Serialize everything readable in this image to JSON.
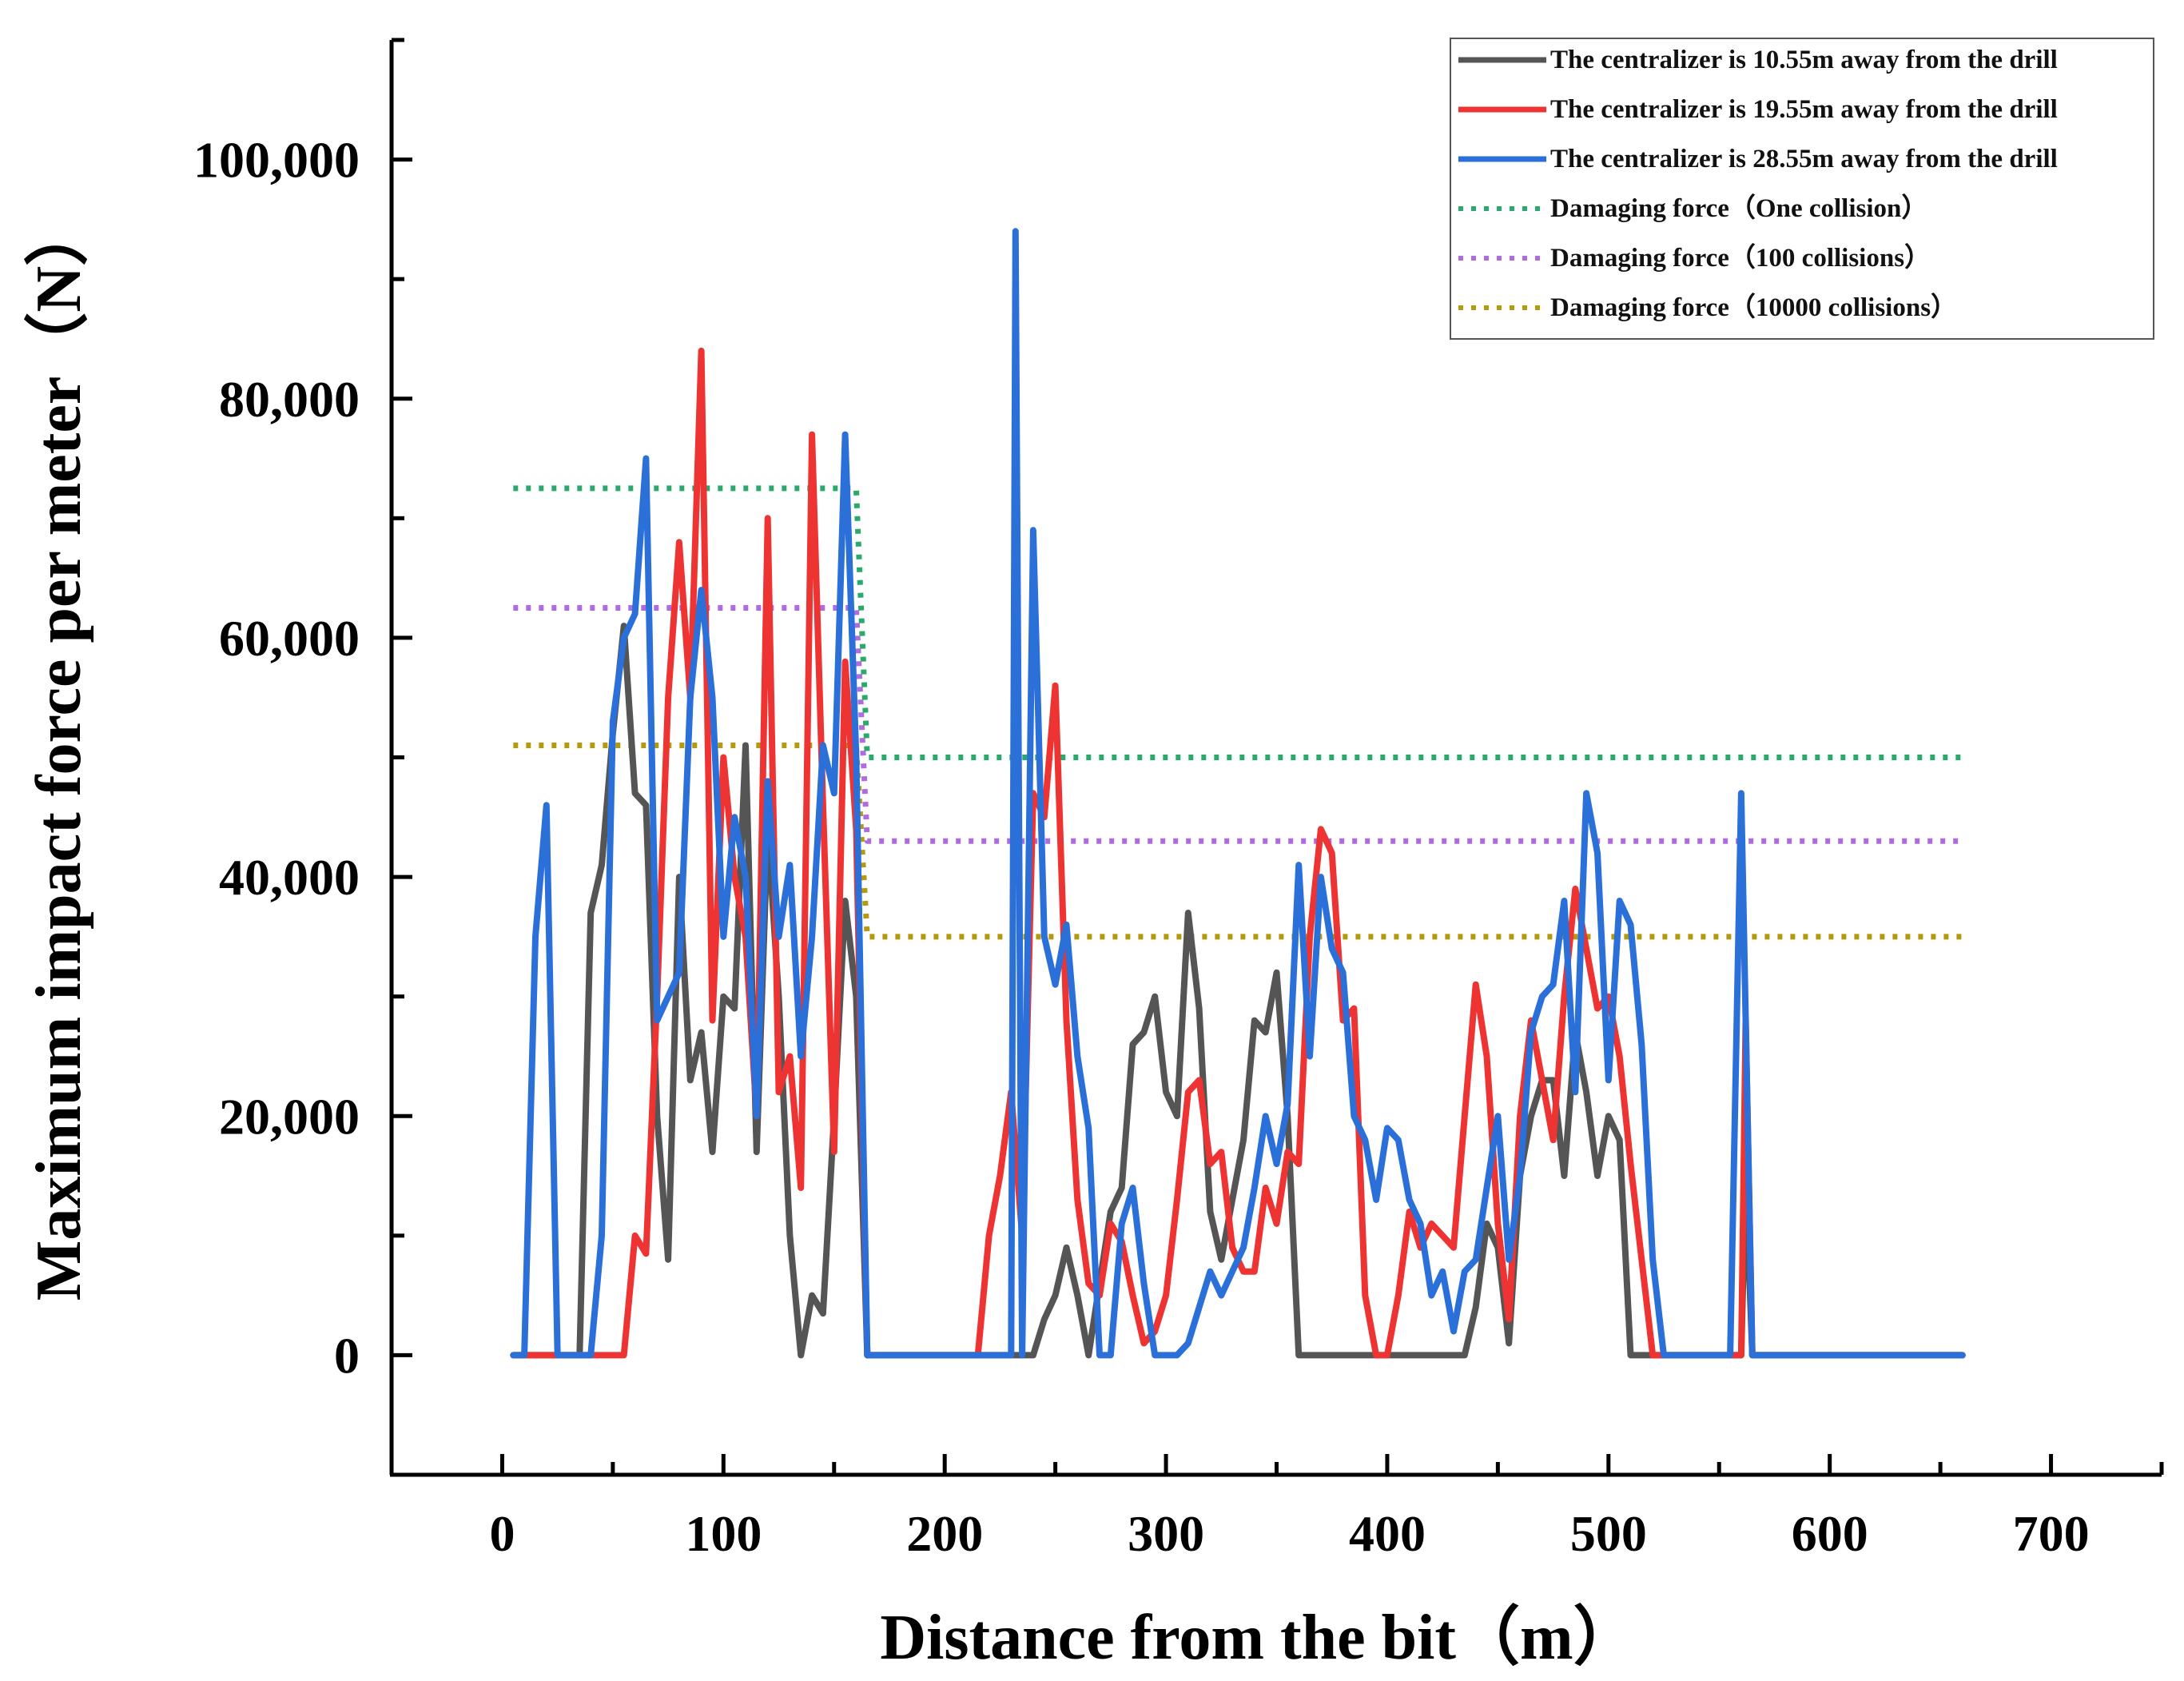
{
  "chart_data": {
    "type": "line",
    "xlabel": "Distance from the bit（m）",
    "ylabel": "Maximum impact force per meter（N）",
    "xlim": [
      -50,
      750
    ],
    "ylim": [
      -10000,
      110000
    ],
    "xticks": [
      0,
      100,
      200,
      300,
      400,
      500,
      600,
      700
    ],
    "xtick_labels": [
      "0",
      "100",
      "200",
      "300",
      "400",
      "500",
      "600",
      "700"
    ],
    "yticks": [
      0,
      20000,
      40000,
      60000,
      80000,
      100000
    ],
    "ytick_labels": [
      "0",
      "20,000",
      "40,000",
      "60,000",
      "80,000",
      "100,000"
    ],
    "legend_position": "top-right",
    "series": [
      {
        "name": "The centralizer is 10.55m away from the drill",
        "color": "#555555",
        "style": "solid",
        "points": [
          [
            5,
            0
          ],
          [
            35,
            0
          ],
          [
            40,
            37000
          ],
          [
            45,
            41000
          ],
          [
            50,
            52000
          ],
          [
            55,
            61000
          ],
          [
            60,
            47000
          ],
          [
            65,
            46000
          ],
          [
            70,
            20000
          ],
          [
            75,
            8000
          ],
          [
            80,
            40000
          ],
          [
            85,
            23000
          ],
          [
            90,
            27000
          ],
          [
            95,
            17000
          ],
          [
            100,
            30000
          ],
          [
            105,
            29000
          ],
          [
            110,
            51000
          ],
          [
            115,
            17000
          ],
          [
            120,
            44000
          ],
          [
            125,
            30000
          ],
          [
            130,
            10000
          ],
          [
            135,
            0
          ],
          [
            140,
            5000
          ],
          [
            145,
            3500
          ],
          [
            150,
            20000
          ],
          [
            155,
            38000
          ],
          [
            160,
            30000
          ],
          [
            165,
            0
          ],
          [
            240,
            0
          ],
          [
            245,
            3000
          ],
          [
            250,
            5000
          ],
          [
            255,
            9000
          ],
          [
            260,
            5000
          ],
          [
            265,
            0
          ],
          [
            270,
            6000
          ],
          [
            275,
            12000
          ],
          [
            280,
            14000
          ],
          [
            285,
            26000
          ],
          [
            290,
            27000
          ],
          [
            295,
            30000
          ],
          [
            300,
            22000
          ],
          [
            305,
            20000
          ],
          [
            310,
            37000
          ],
          [
            315,
            29000
          ],
          [
            320,
            12000
          ],
          [
            325,
            8000
          ],
          [
            330,
            13000
          ],
          [
            335,
            18000
          ],
          [
            340,
            28000
          ],
          [
            345,
            27000
          ],
          [
            350,
            32000
          ],
          [
            355,
            20000
          ],
          [
            360,
            0
          ],
          [
            435,
            0
          ],
          [
            440,
            4000
          ],
          [
            445,
            11000
          ],
          [
            450,
            9000
          ],
          [
            455,
            1000
          ],
          [
            460,
            15000
          ],
          [
            465,
            20000
          ],
          [
            470,
            23000
          ],
          [
            475,
            23000
          ],
          [
            480,
            15000
          ],
          [
            485,
            27000
          ],
          [
            490,
            22000
          ],
          [
            495,
            15000
          ],
          [
            500,
            20000
          ],
          [
            505,
            18000
          ],
          [
            510,
            0
          ],
          [
            560,
            0
          ],
          [
            562,
            15000
          ],
          [
            565,
            0
          ],
          [
            660,
            0
          ]
        ]
      },
      {
        "name": "The centralizer is 19.55m away from the drill",
        "color": "#ee3333",
        "style": "solid",
        "points": [
          [
            5,
            0
          ],
          [
            55,
            0
          ],
          [
            60,
            10000
          ],
          [
            65,
            8500
          ],
          [
            70,
            30000
          ],
          [
            75,
            55000
          ],
          [
            80,
            68000
          ],
          [
            85,
            55000
          ],
          [
            90,
            84000
          ],
          [
            95,
            28000
          ],
          [
            100,
            50000
          ],
          [
            105,
            40000
          ],
          [
            110,
            35000
          ],
          [
            115,
            20000
          ],
          [
            120,
            70000
          ],
          [
            125,
            22000
          ],
          [
            130,
            25000
          ],
          [
            135,
            14000
          ],
          [
            140,
            77000
          ],
          [
            145,
            46000
          ],
          [
            150,
            17000
          ],
          [
            155,
            58000
          ],
          [
            160,
            44000
          ],
          [
            165,
            0
          ],
          [
            215,
            0
          ],
          [
            220,
            10000
          ],
          [
            225,
            15000
          ],
          [
            230,
            22000
          ],
          [
            235,
            10000
          ],
          [
            240,
            47000
          ],
          [
            245,
            45000
          ],
          [
            250,
            56000
          ],
          [
            255,
            28000
          ],
          [
            260,
            13000
          ],
          [
            265,
            6000
          ],
          [
            270,
            5000
          ],
          [
            275,
            11000
          ],
          [
            280,
            9500
          ],
          [
            285,
            5000
          ],
          [
            290,
            1000
          ],
          [
            295,
            2000
          ],
          [
            300,
            5000
          ],
          [
            305,
            13000
          ],
          [
            310,
            22000
          ],
          [
            315,
            23000
          ],
          [
            320,
            16000
          ],
          [
            325,
            17000
          ],
          [
            330,
            9000
          ],
          [
            335,
            7000
          ],
          [
            340,
            7000
          ],
          [
            345,
            14000
          ],
          [
            350,
            11000
          ],
          [
            355,
            17000
          ],
          [
            360,
            16000
          ],
          [
            365,
            35000
          ],
          [
            370,
            44000
          ],
          [
            375,
            42000
          ],
          [
            380,
            28000
          ],
          [
            385,
            29000
          ],
          [
            390,
            5000
          ],
          [
            395,
            0
          ],
          [
            400,
            0
          ],
          [
            405,
            5000
          ],
          [
            410,
            12000
          ],
          [
            415,
            9000
          ],
          [
            420,
            11000
          ],
          [
            425,
            10000
          ],
          [
            430,
            9000
          ],
          [
            435,
            20000
          ],
          [
            440,
            31000
          ],
          [
            445,
            25000
          ],
          [
            450,
            11000
          ],
          [
            455,
            3000
          ],
          [
            460,
            20000
          ],
          [
            465,
            28000
          ],
          [
            470,
            23000
          ],
          [
            475,
            18000
          ],
          [
            480,
            30000
          ],
          [
            485,
            39000
          ],
          [
            490,
            34000
          ],
          [
            495,
            29000
          ],
          [
            500,
            30000
          ],
          [
            505,
            25000
          ],
          [
            510,
            16000
          ],
          [
            515,
            8000
          ],
          [
            520,
            0
          ],
          [
            530,
            0
          ],
          [
            560,
            0
          ],
          [
            562,
            28000
          ],
          [
            565,
            0
          ],
          [
            660,
            0
          ]
        ]
      },
      {
        "name": "The centralizer is 28.55m away from the drill",
        "color": "#2b6fd8",
        "style": "solid",
        "points": [
          [
            5,
            0
          ],
          [
            10,
            0
          ],
          [
            15,
            35000
          ],
          [
            20,
            46000
          ],
          [
            25,
            0
          ],
          [
            40,
            0
          ],
          [
            45,
            10000
          ],
          [
            50,
            53000
          ],
          [
            55,
            60000
          ],
          [
            60,
            62000
          ],
          [
            65,
            75000
          ],
          [
            70,
            28000
          ],
          [
            75,
            30000
          ],
          [
            80,
            32000
          ],
          [
            85,
            55000
          ],
          [
            90,
            64000
          ],
          [
            95,
            55000
          ],
          [
            100,
            35000
          ],
          [
            105,
            45000
          ],
          [
            110,
            40000
          ],
          [
            115,
            20000
          ],
          [
            120,
            48000
          ],
          [
            125,
            35000
          ],
          [
            130,
            41000
          ],
          [
            135,
            25000
          ],
          [
            140,
            35000
          ],
          [
            145,
            51000
          ],
          [
            150,
            47000
          ],
          [
            155,
            77000
          ],
          [
            160,
            50000
          ],
          [
            165,
            0
          ],
          [
            230,
            0
          ],
          [
            232,
            94000
          ],
          [
            235,
            0
          ],
          [
            240,
            69000
          ],
          [
            245,
            35000
          ],
          [
            250,
            31000
          ],
          [
            255,
            36000
          ],
          [
            260,
            25000
          ],
          [
            265,
            19000
          ],
          [
            270,
            0
          ],
          [
            275,
            0
          ],
          [
            280,
            11000
          ],
          [
            285,
            14000
          ],
          [
            290,
            6000
          ],
          [
            295,
            0
          ],
          [
            300,
            0
          ],
          [
            305,
            0
          ],
          [
            310,
            1000
          ],
          [
            315,
            4000
          ],
          [
            320,
            7000
          ],
          [
            325,
            5000
          ],
          [
            330,
            7000
          ],
          [
            335,
            9000
          ],
          [
            340,
            14000
          ],
          [
            345,
            20000
          ],
          [
            350,
            16000
          ],
          [
            355,
            21000
          ],
          [
            360,
            41000
          ],
          [
            365,
            25000
          ],
          [
            370,
            40000
          ],
          [
            375,
            34000
          ],
          [
            380,
            32000
          ],
          [
            385,
            20000
          ],
          [
            390,
            18000
          ],
          [
            395,
            13000
          ],
          [
            400,
            19000
          ],
          [
            405,
            18000
          ],
          [
            410,
            13000
          ],
          [
            415,
            11000
          ],
          [
            420,
            5000
          ],
          [
            425,
            7000
          ],
          [
            430,
            2000
          ],
          [
            435,
            7000
          ],
          [
            440,
            8000
          ],
          [
            445,
            14000
          ],
          [
            450,
            20000
          ],
          [
            455,
            8000
          ],
          [
            460,
            15000
          ],
          [
            465,
            27000
          ],
          [
            470,
            30000
          ],
          [
            475,
            31000
          ],
          [
            480,
            38000
          ],
          [
            485,
            22000
          ],
          [
            490,
            47000
          ],
          [
            495,
            42000
          ],
          [
            500,
            23000
          ],
          [
            505,
            38000
          ],
          [
            510,
            36000
          ],
          [
            515,
            26000
          ],
          [
            520,
            8000
          ],
          [
            525,
            0
          ],
          [
            555,
            0
          ],
          [
            560,
            47000
          ],
          [
            565,
            0
          ],
          [
            660,
            0
          ]
        ]
      },
      {
        "name": "Damaging force（One collision）",
        "color": "#2aaa6a",
        "style": "dotted",
        "points": [
          [
            5,
            72500
          ],
          [
            160,
            72500
          ],
          [
            165,
            50000
          ],
          [
            660,
            50000
          ]
        ]
      },
      {
        "name": "Damaging force（100 collisions）",
        "color": "#b06be0",
        "style": "dotted",
        "points": [
          [
            5,
            62500
          ],
          [
            160,
            62500
          ],
          [
            165,
            43000
          ],
          [
            660,
            43000
          ]
        ]
      },
      {
        "name": "Damaging force（10000 collisions）",
        "color": "#b59a10",
        "style": "dotted",
        "points": [
          [
            5,
            51000
          ],
          [
            160,
            51000
          ],
          [
            165,
            35000
          ],
          [
            660,
            35000
          ]
        ]
      }
    ]
  }
}
